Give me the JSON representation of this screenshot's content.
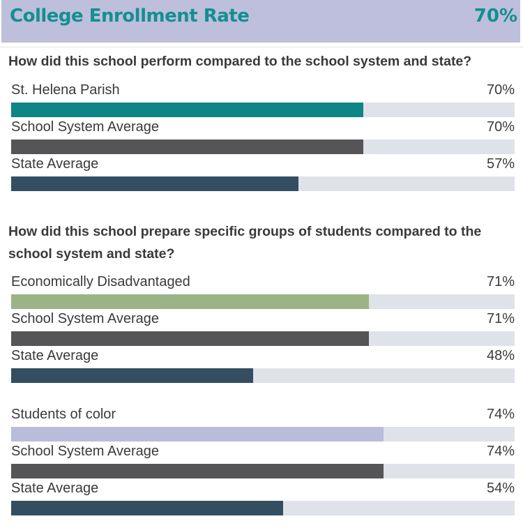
{
  "header": {
    "title": "College Enrollment Rate",
    "value": "70%"
  },
  "colors": {
    "header_bg": "#bdbfdc",
    "header_text": "#138f8f",
    "school": "#0f8585",
    "econ": "#9bb386",
    "color_group": "#babcdb",
    "system": "#555457",
    "state": "#334e61",
    "track": "#dfe2e8"
  },
  "chart_data": [
    {
      "type": "bar",
      "title": "How did this school perform compared to the school system and state?",
      "categories": [
        "St. Helena Parish",
        "School System Average",
        "State Average"
      ],
      "values": [
        70,
        70,
        57
      ],
      "labels": [
        "70%",
        "70%",
        "57%"
      ],
      "ylim": [
        0,
        100
      ],
      "bar_colors": [
        "#0f8585",
        "#555457",
        "#334e61"
      ]
    },
    {
      "type": "bar",
      "title": "How did this school prepare specific groups of students compared to the school system and state?",
      "categories": [
        "Economically Disadvantaged",
        "School System Average",
        "State Average"
      ],
      "values": [
        71,
        71,
        48
      ],
      "labels": [
        "71%",
        "71%",
        "48%"
      ],
      "ylim": [
        0,
        100
      ],
      "bar_colors": [
        "#9bb386",
        "#555457",
        "#334e61"
      ]
    },
    {
      "type": "bar",
      "title": "",
      "categories": [
        "Students of color",
        "School System Average",
        "State Average"
      ],
      "values": [
        74,
        74,
        54
      ],
      "labels": [
        "74%",
        "74%",
        "54%"
      ],
      "ylim": [
        0,
        100
      ],
      "bar_colors": [
        "#babcdb",
        "#555457",
        "#334e61"
      ]
    }
  ]
}
